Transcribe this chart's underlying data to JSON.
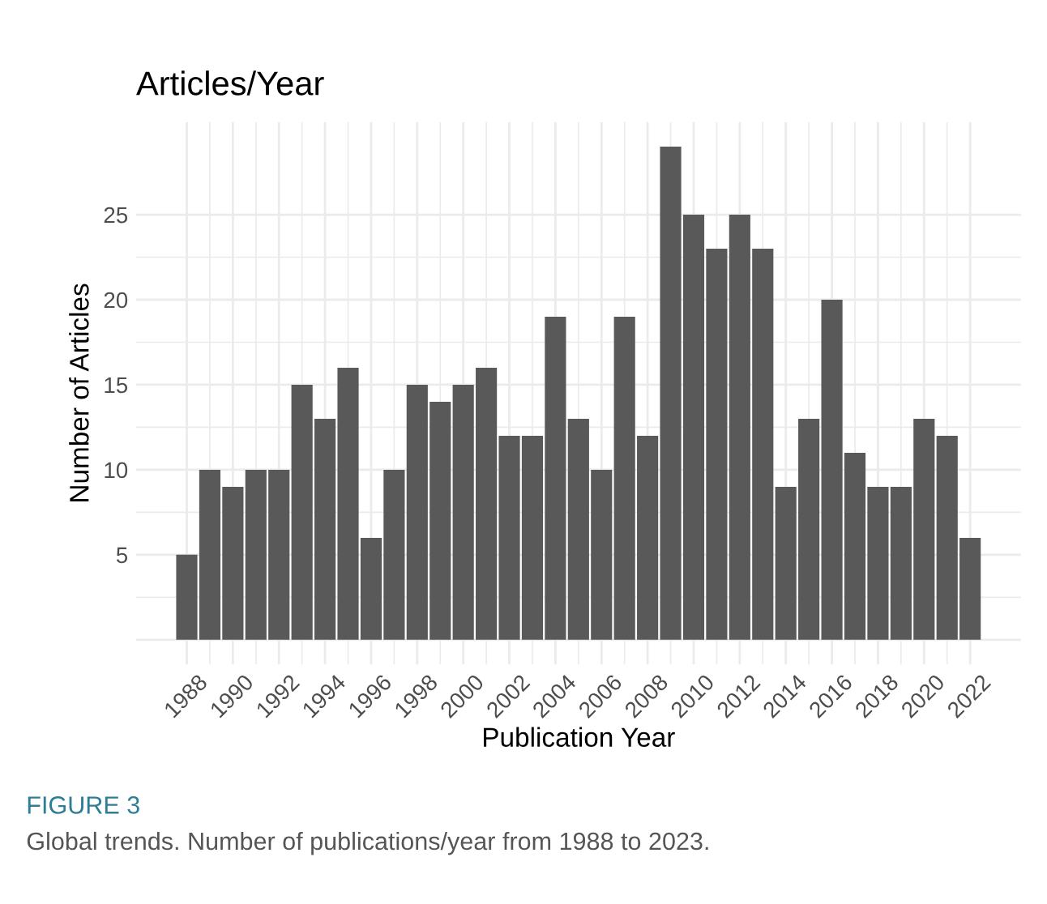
{
  "chart_data": {
    "type": "bar",
    "title": "Articles/Year",
    "xlabel": "Publication Year",
    "ylabel": "Number of Articles",
    "x": [
      1988,
      1989,
      1990,
      1991,
      1992,
      1993,
      1994,
      1995,
      1996,
      1997,
      1998,
      1999,
      2000,
      2001,
      2002,
      2003,
      2004,
      2005,
      2006,
      2007,
      2008,
      2009,
      2010,
      2011,
      2012,
      2013,
      2014,
      2015,
      2016,
      2017,
      2018,
      2019,
      2020,
      2021,
      2022
    ],
    "values": [
      5,
      10,
      9,
      10,
      10,
      15,
      13,
      16,
      6,
      10,
      15,
      14,
      15,
      16,
      12,
      12,
      19,
      13,
      10,
      19,
      12,
      29,
      25,
      23,
      25,
      23,
      9,
      13,
      20,
      11,
      9,
      9,
      13,
      12,
      6
    ],
    "color": "#595959",
    "xlim": [
      1985.8,
      2024.2
    ],
    "xticks": [
      1988,
      1990,
      1992,
      1994,
      1996,
      1998,
      2000,
      2002,
      2004,
      2006,
      2008,
      2010,
      2012,
      2014,
      2016,
      2018,
      2020,
      2022
    ],
    "ylim": [
      -1.45,
      30.45
    ],
    "yticks": [
      {
        "value": 0,
        "label": null
      },
      5,
      10,
      15,
      20,
      25
    ],
    "grid": true,
    "annotations": [
      "FIGURE 3",
      "Global trends. Number of publications/year from 1988 to 2023."
    ]
  }
}
